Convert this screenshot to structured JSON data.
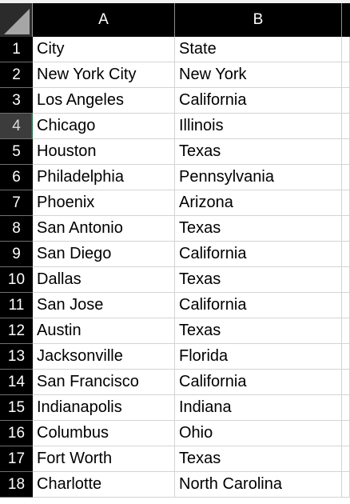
{
  "columns": [
    "A",
    "B"
  ],
  "rows": [
    {
      "num": "1",
      "a": "City",
      "b": "State"
    },
    {
      "num": "2",
      "a": "New York City",
      "b": "New York"
    },
    {
      "num": "3",
      "a": "Los Angeles",
      "b": "California"
    },
    {
      "num": "4",
      "a": "Chicago",
      "b": "Illinois"
    },
    {
      "num": "5",
      "a": "Houston",
      "b": "Texas"
    },
    {
      "num": "6",
      "a": "Philadelphia",
      "b": "Pennsylvania"
    },
    {
      "num": "7",
      "a": "Phoenix",
      "b": "Arizona"
    },
    {
      "num": "8",
      "a": "San Antonio",
      "b": "Texas"
    },
    {
      "num": "9",
      "a": "San Diego",
      "b": "California"
    },
    {
      "num": "10",
      "a": "Dallas",
      "b": "Texas"
    },
    {
      "num": "11",
      "a": "San Jose",
      "b": "California"
    },
    {
      "num": "12",
      "a": "Austin",
      "b": "Texas"
    },
    {
      "num": "13",
      "a": "Jacksonville",
      "b": "Florida"
    },
    {
      "num": "14",
      "a": "San Francisco",
      "b": "California"
    },
    {
      "num": "15",
      "a": "Indianapolis",
      "b": "Indiana"
    },
    {
      "num": "16",
      "a": "Columbus",
      "b": "Ohio"
    },
    {
      "num": "17",
      "a": "Fort Worth",
      "b": "Texas"
    },
    {
      "num": "18",
      "a": "Charlotte",
      "b": "North Carolina"
    }
  ],
  "selected_row": "4",
  "colors": {
    "header_bg": "#000000",
    "header_text": "#ffffff",
    "selected_header_bg": "#3c3c3c",
    "selection_accent": "#1e7145",
    "gridline": "#d4d4d4"
  }
}
